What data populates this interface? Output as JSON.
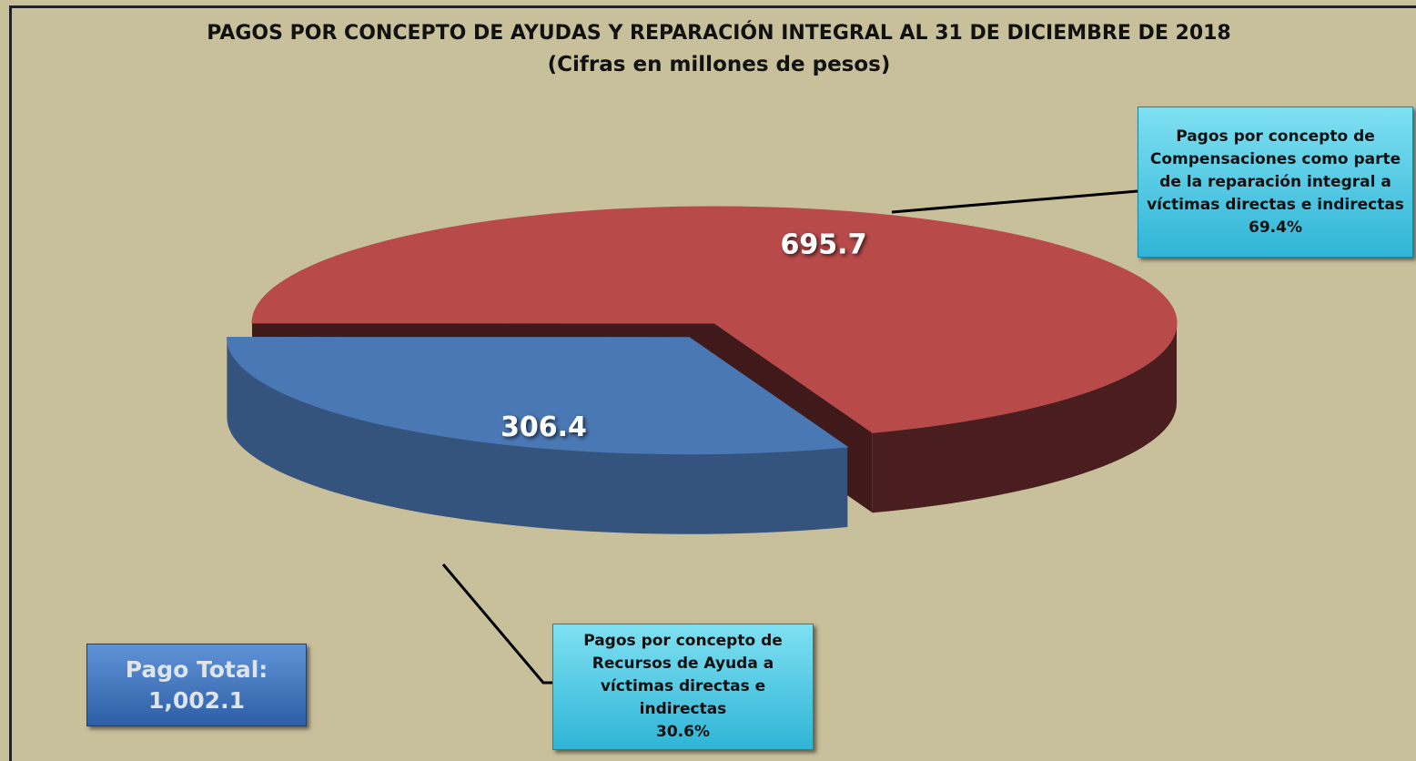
{
  "chart_data": {
    "type": "pie",
    "title": "PAGOS POR CONCEPTO DE AYUDAS Y REPARACIÓN INTEGRAL AL 31 DE DICIEMBRE DE 2018",
    "subtitle": "(Cifras en millones de pesos)",
    "categories": [
      "Pagos por concepto de Recursos de Ayuda a víctimas directas e indirectas",
      "Pagos por concepto de Compensaciones como parte de la reparación integral a víctimas directas e indirectas"
    ],
    "values": [
      306.4,
      695.7
    ],
    "percentages": [
      30.6,
      69.4
    ],
    "percentage_labels": [
      "30.6%",
      "69.4%"
    ],
    "colors": [
      "#4a78b4",
      "#b84a4a"
    ],
    "total": {
      "label": "Pago  Total:",
      "value": 1002.1,
      "value_label": "1,002.1"
    }
  }
}
